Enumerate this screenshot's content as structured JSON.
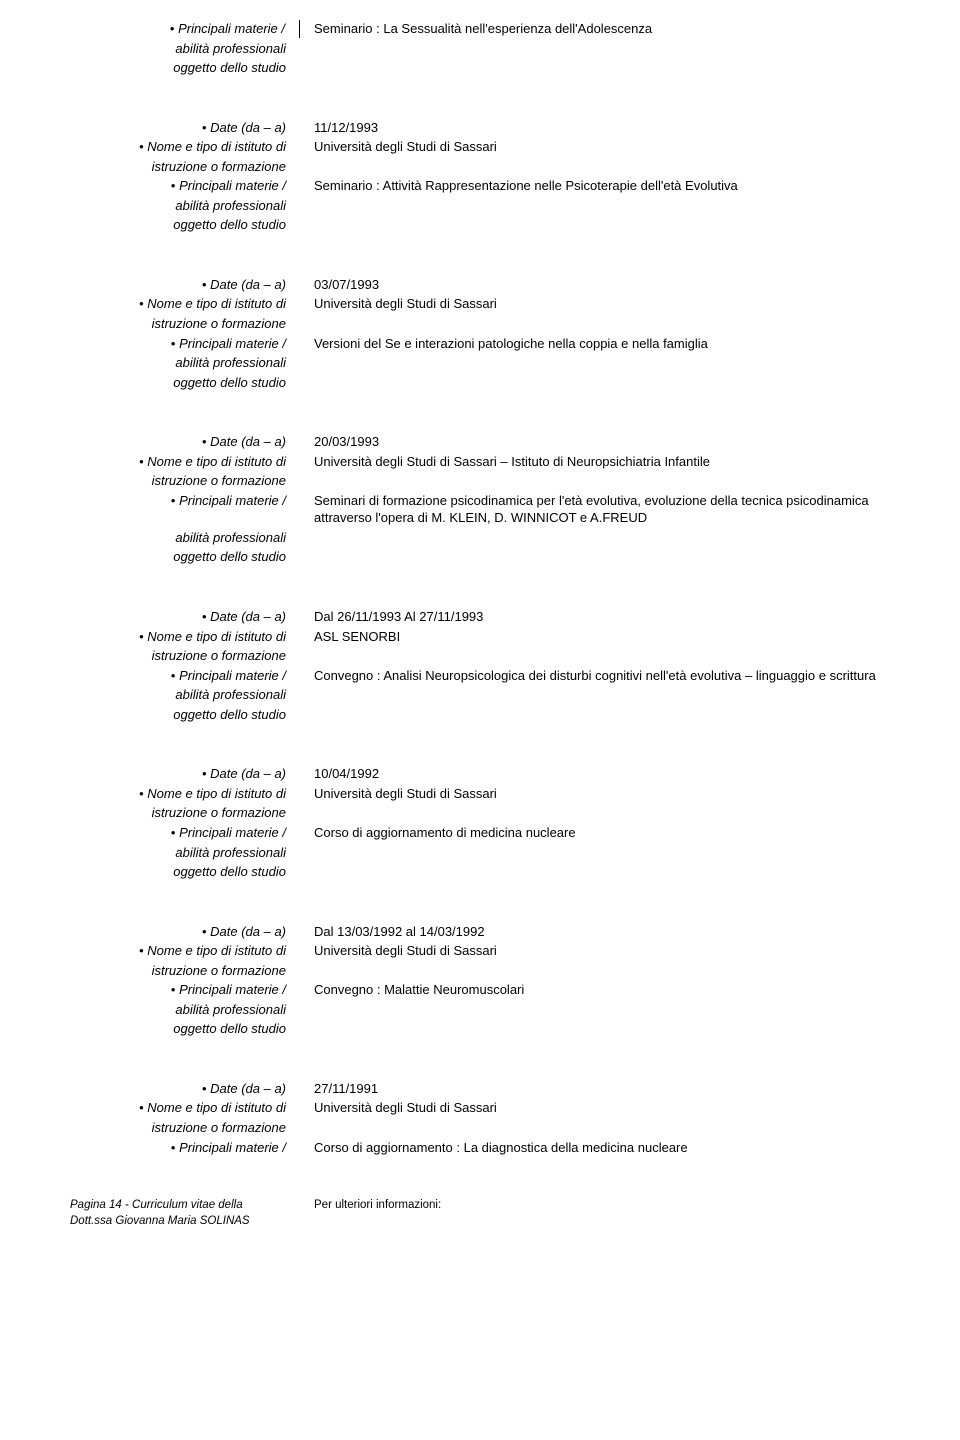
{
  "entries": [
    {
      "only_materie": true,
      "materie": "Seminario : La Sessualità nell'esperienza dell'Adolescenza"
    },
    {
      "date": "11/12/1993",
      "istituto": "Università degli Studi di Sassari",
      "materie": "Seminario : Attività Rappresentazione nelle Psicoterapie dell'età Evolutiva"
    },
    {
      "date": "03/07/1993",
      "istituto": "Università degli Studi di Sassari",
      "materie": "Versioni del Se e interazioni patologiche nella coppia e nella famiglia"
    },
    {
      "date": "20/03/1993",
      "istituto": "Università degli Studi di Sassari – Istituto di Neuropsichiatria Infantile",
      "materie": "Seminari di formazione psicodinamica per l'età evolutiva, evoluzione della tecnica psicodinamica attraverso l'opera di M. KLEIN, D. WINNICOT e A.FREUD"
    },
    {
      "date": "Dal  26/11/1993 Al 27/11/1993",
      "istituto": "ASL SENORBI",
      "materie": "Convegno : Analisi Neuropsicologica dei disturbi cognitivi nell'età evolutiva – linguaggio e scrittura"
    },
    {
      "date": "10/04/1992",
      "istituto": "Università degli Studi di Sassari",
      "materie": "Corso di aggiornamento di medicina nucleare"
    },
    {
      "date": " Dal 13/03/1992 al 14/03/1992",
      "istituto": "Università degli Studi di Sassari",
      "materie": "Convegno : Malattie Neuromuscolari"
    },
    {
      "date": "27/11/1991",
      "istituto": "Università degli Studi di Sassari",
      "materie": "Corso di aggiornamento : La diagnostica della medicina nucleare",
      "truncated": true
    }
  ],
  "labels": {
    "date": "Date (da – a)",
    "istituto_l1": "Nome e tipo di istituto di",
    "istituto_l2": "istruzione o formazione",
    "materie_l1": "Principali materie /",
    "materie_l2": "abilità professionali",
    "materie_l3": "oggetto dello studio"
  },
  "footer": {
    "left_l1": "Pagina 14 - Curriculum vitae della",
    "left_l2": "Dott.ssa Giovanna Maria SOLINAS",
    "right": "Per ulteriori informazioni:"
  }
}
